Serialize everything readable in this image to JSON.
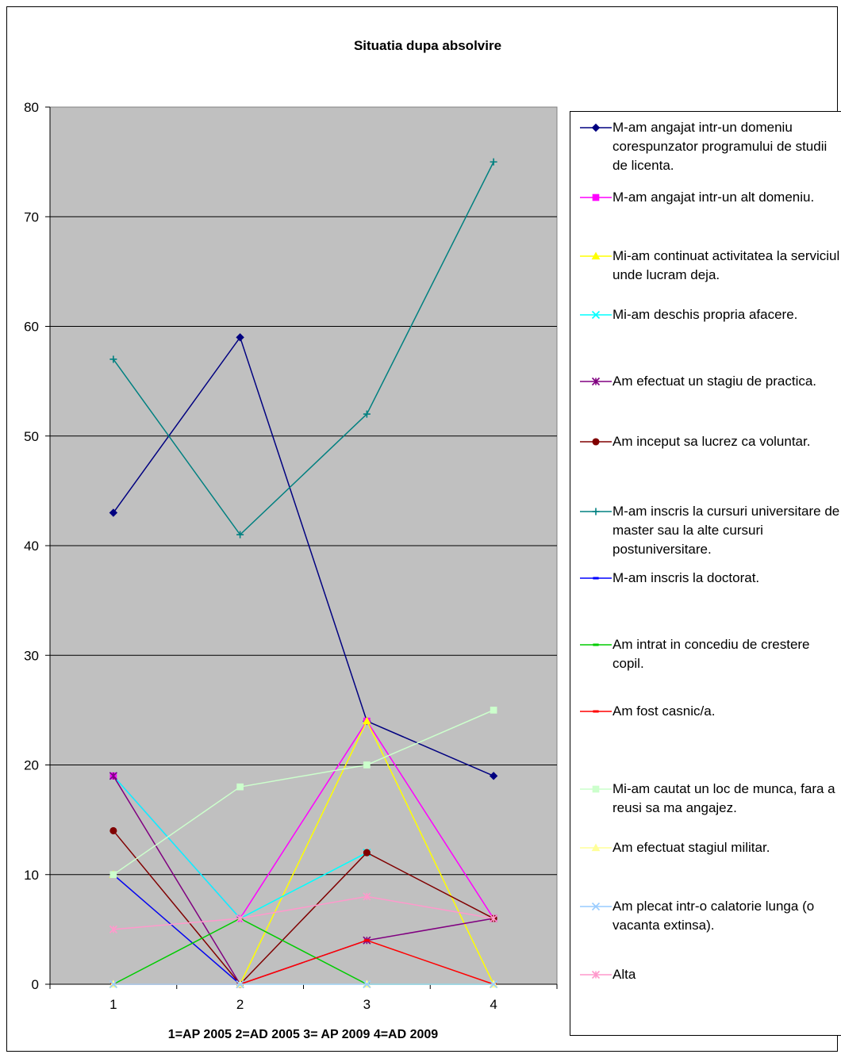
{
  "chart_data": {
    "type": "line",
    "title": "Situatia dupa absolvire",
    "xlabel": "1=AP 2005 2=AD 2005 3= AP 2009 4=AD 2009",
    "ylabel": "",
    "categories": [
      "1",
      "2",
      "3",
      "4"
    ],
    "ylim": [
      0,
      80
    ],
    "yticks": [
      "0",
      "10",
      "20",
      "30",
      "40",
      "50",
      "60",
      "70",
      "80"
    ],
    "grid": true,
    "legend_position": "right",
    "background": "#c0c0c0",
    "series": [
      {
        "name": "M-am angajat intr-un domeniu corespunzator programului de studii de licenta.",
        "values": [
          43,
          59,
          24,
          19
        ],
        "color": "#000080",
        "marker": "diamond"
      },
      {
        "name": "M-am angajat intr-un alt domeniu.",
        "values": [
          19,
          6,
          24,
          6
        ],
        "color": "#ff00ff",
        "marker": "square"
      },
      {
        "name": "Mi-am continuat activitatea la serviciul unde lucram deja.",
        "values": [
          10,
          0,
          24,
          0
        ],
        "color": "#ffff00",
        "marker": "triangle"
      },
      {
        "name": "Mi-am deschis propria afacere.",
        "values": [
          19,
          6,
          12,
          null
        ],
        "color": "#00ffff",
        "marker": "x"
      },
      {
        "name": "Am efectuat un stagiu de practica.",
        "values": [
          19,
          0,
          4,
          6
        ],
        "color": "#800080",
        "marker": "star"
      },
      {
        "name": "Am inceput sa lucrez ca voluntar.",
        "values": [
          14,
          0,
          12,
          6
        ],
        "color": "#800000",
        "marker": "circle"
      },
      {
        "name": "M-am inscris la cursuri universitare de master sau la alte cursuri postuniversitare.",
        "values": [
          57,
          41,
          52,
          75
        ],
        "color": "#008080",
        "marker": "plus"
      },
      {
        "name": "M-am inscris la doctorat.",
        "values": [
          10,
          0,
          null,
          null
        ],
        "color": "#0000ff",
        "marker": "dash"
      },
      {
        "name": "Am intrat in concediu de crestere copil.",
        "values": [
          0,
          6,
          0,
          0
        ],
        "color": "#00cc00",
        "marker": "dash"
      },
      {
        "name": "Am fost casnic/a.",
        "values": [
          0,
          0,
          4,
          0
        ],
        "color": "#ff0000",
        "marker": "dash"
      },
      {
        "name": "Mi-am cautat un loc de munca, fara a reusi sa ma angajez.",
        "values": [
          10,
          18,
          20,
          25
        ],
        "color": "#ccffcc",
        "marker": "square"
      },
      {
        "name": "Am efectuat stagiul militar.",
        "values": [
          0,
          0,
          0,
          0
        ],
        "color": "#ffff99",
        "marker": "triangle"
      },
      {
        "name": "Am plecat intr-o calatorie lunga (o vacanta extinsa).",
        "values": [
          0,
          0,
          0,
          0
        ],
        "color": "#99ccff",
        "marker": "x"
      },
      {
        "name": "Alta",
        "values": [
          5,
          6,
          8,
          6
        ],
        "color": "#ff99cc",
        "marker": "star"
      }
    ]
  }
}
